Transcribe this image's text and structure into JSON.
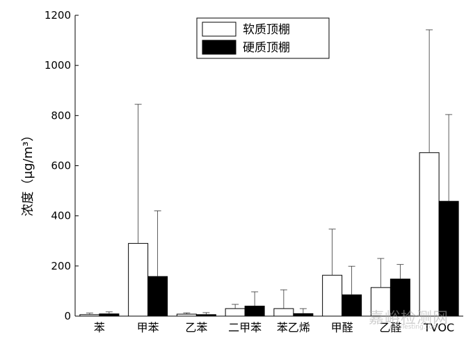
{
  "chart_data": {
    "type": "bar",
    "ylabel": "浓度（μg/m³）",
    "ylim": [
      0,
      1200
    ],
    "yticks": [
      0,
      200,
      400,
      600,
      800,
      1000,
      1200
    ],
    "categories": [
      "苯",
      "甲苯",
      "乙苯",
      "二甲苯",
      "苯乙烯",
      "甲醛",
      "乙醛",
      "TVOC"
    ],
    "series": [
      {
        "name": "软质顶棚",
        "color": "#ffffff",
        "values": [
          6,
          290,
          8,
          30,
          30,
          163,
          114,
          652
        ],
        "error": [
          6,
          555,
          5,
          17,
          75,
          184,
          116,
          490
        ]
      },
      {
        "name": "硬质顶棚",
        "color": "#000000",
        "values": [
          9,
          158,
          6,
          40,
          10,
          85,
          148,
          458
        ],
        "error": [
          8,
          262,
          8,
          57,
          20,
          114,
          58,
          346
        ]
      }
    ],
    "legend_position": "top-center",
    "grid": false
  },
  "watermark": {
    "text": "嘉峪检测网",
    "sub": "AnyTesting.com"
  }
}
